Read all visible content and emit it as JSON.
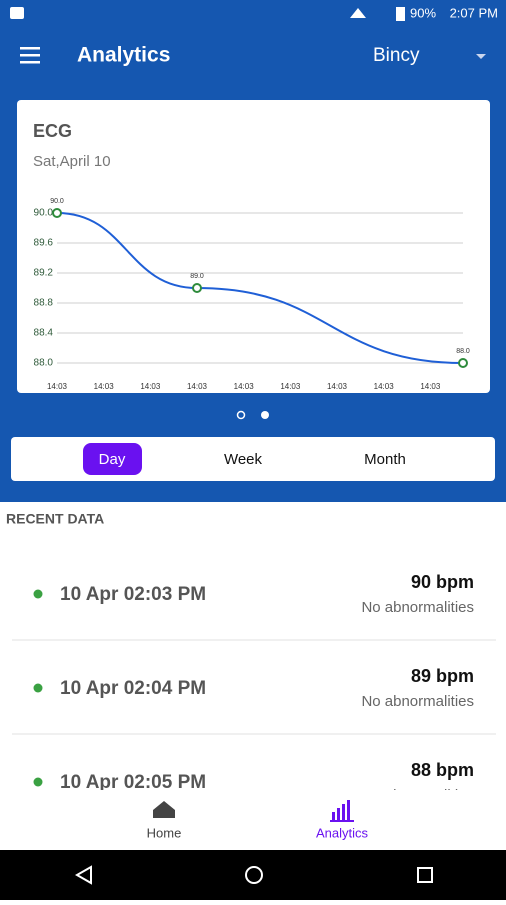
{
  "status_bar": {
    "battery": "90%",
    "time": "2:07 PM"
  },
  "app_bar": {
    "title": "Analytics",
    "user": "Bincy"
  },
  "chart_data": {
    "type": "line",
    "title": "ECG",
    "subtitle": "Sat,April 10",
    "x": [
      0,
      3,
      8.7
    ],
    "series": [
      {
        "color": "#1f5fd6",
        "values": [
          90,
          89,
          88
        ],
        "value_labels": [
          "90.0",
          "89.0",
          "88.0"
        ]
      }
    ],
    "xlim": [
      0,
      8.7
    ],
    "xticks": [
      {
        "value": 0,
        "label": "14:03"
      },
      {
        "value": 1,
        "label": "14:03"
      },
      {
        "value": 2,
        "label": "14:03"
      },
      {
        "value": 3,
        "label": "14:03"
      },
      {
        "value": 4,
        "label": "14:03"
      },
      {
        "value": 5,
        "label": "14:03"
      },
      {
        "value": 6,
        "label": "14:03"
      },
      {
        "value": 7,
        "label": "14:03"
      },
      {
        "value": 8,
        "label": "14:03"
      }
    ],
    "ylim": [
      88,
      90
    ],
    "yticks": [
      {
        "value": 88,
        "label": "88.0"
      },
      88.4,
      88.8,
      89.2,
      89.6,
      {
        "value": 90,
        "label": "90.0"
      }
    ],
    "grid": true
  },
  "tabs": [
    "Day",
    "Week",
    "Month"
  ],
  "section": "RECENT DATA",
  "items": [
    {
      "time": "10 Apr 02:03 PM",
      "bpm": "90 bpm",
      "status": "No abnormalities"
    },
    {
      "time": "10 Apr 02:04 PM",
      "bpm": "89 bpm",
      "status": "No abnormalities"
    },
    {
      "time": "10 Apr 02:05 PM",
      "bpm": "88 bpm",
      "status": "No abnormalities"
    }
  ],
  "nav": [
    "Home",
    "Analytics"
  ]
}
